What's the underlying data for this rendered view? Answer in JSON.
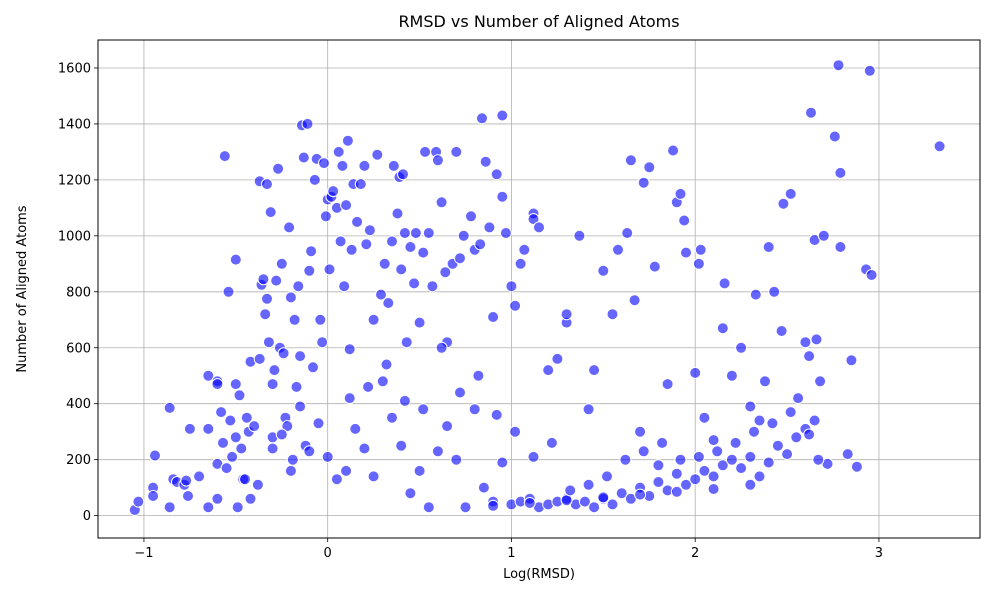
{
  "chart_data": {
    "type": "scatter",
    "title": "RMSD vs Number of Aligned Atoms",
    "xlabel": "Log(RMSD)",
    "ylabel": "Number of Aligned Atoms",
    "xlim": [
      -1.25,
      3.55
    ],
    "ylim": [
      -80,
      1700
    ],
    "xticks": [
      -1,
      0,
      1,
      2,
      3
    ],
    "yticks": [
      0,
      200,
      400,
      600,
      800,
      1000,
      1200,
      1400,
      1600
    ],
    "grid": true,
    "marker_color": "#0000ff",
    "marker_edge": "#ffffff",
    "note_points": "sampled",
    "points": [
      [
        -1.05,
        20
      ],
      [
        -1.03,
        50
      ],
      [
        -0.95,
        100
      ],
      [
        -0.95,
        70
      ],
      [
        -0.94,
        215
      ],
      [
        -0.86,
        30
      ],
      [
        -0.86,
        385
      ],
      [
        -0.84,
        130
      ],
      [
        -0.82,
        120
      ],
      [
        -0.78,
        110
      ],
      [
        -0.77,
        125
      ],
      [
        -0.76,
        70
      ],
      [
        -0.75,
        310
      ],
      [
        -0.7,
        140
      ],
      [
        -0.65,
        500
      ],
      [
        -0.65,
        310
      ],
      [
        -0.65,
        30
      ],
      [
        -0.6,
        480
      ],
      [
        -0.6,
        470
      ],
      [
        -0.6,
        185
      ],
      [
        -0.6,
        60
      ],
      [
        -0.58,
        370
      ],
      [
        -0.57,
        260
      ],
      [
        -0.56,
        1285
      ],
      [
        -0.54,
        800
      ],
      [
        -0.53,
        340
      ],
      [
        -0.52,
        210
      ],
      [
        -0.5,
        915
      ],
      [
        -0.5,
        470
      ],
      [
        -0.5,
        280
      ],
      [
        -0.49,
        30
      ],
      [
        -0.48,
        430
      ],
      [
        -0.47,
        240
      ],
      [
        -0.46,
        130
      ],
      [
        -0.44,
        350
      ],
      [
        -0.43,
        300
      ],
      [
        -0.42,
        550
      ],
      [
        -0.42,
        60
      ],
      [
        -0.4,
        320
      ],
      [
        -0.38,
        110
      ],
      [
        -0.37,
        560
      ],
      [
        -0.37,
        1195
      ],
      [
        -0.36,
        825
      ],
      [
        -0.35,
        845
      ],
      [
        -0.34,
        720
      ],
      [
        -0.33,
        1185
      ],
      [
        -0.33,
        775
      ],
      [
        -0.32,
        620
      ],
      [
        -0.31,
        1085
      ],
      [
        -0.3,
        470
      ],
      [
        -0.3,
        280
      ],
      [
        -0.29,
        520
      ],
      [
        -0.28,
        840
      ],
      [
        -0.27,
        1240
      ],
      [
        -0.26,
        600
      ],
      [
        -0.25,
        900
      ],
      [
        -0.24,
        580
      ],
      [
        -0.23,
        350
      ],
      [
        -0.22,
        320
      ],
      [
        -0.21,
        1030
      ],
      [
        -0.2,
        780
      ],
      [
        -0.19,
        200
      ],
      [
        -0.18,
        700
      ],
      [
        -0.17,
        460
      ],
      [
        -0.16,
        820
      ],
      [
        -0.15,
        570
      ],
      [
        -0.14,
        1395
      ],
      [
        -0.13,
        1280
      ],
      [
        -0.12,
        250
      ],
      [
        -0.11,
        1400
      ],
      [
        -0.1,
        875
      ],
      [
        -0.09,
        945
      ],
      [
        -0.08,
        530
      ],
      [
        -0.07,
        1200
      ],
      [
        -0.06,
        1275
      ],
      [
        -0.05,
        330
      ],
      [
        -0.04,
        700
      ],
      [
        -0.03,
        620
      ],
      [
        -0.02,
        1260
      ],
      [
        -0.01,
        1070
      ],
      [
        0.0,
        1130
      ],
      [
        0.01,
        880
      ],
      [
        0.02,
        1140
      ],
      [
        0.03,
        1160
      ],
      [
        0.05,
        1100
      ],
      [
        0.06,
        1300
      ],
      [
        0.07,
        980
      ],
      [
        0.08,
        1250
      ],
      [
        0.09,
        820
      ],
      [
        0.1,
        1110
      ],
      [
        0.11,
        1340
      ],
      [
        0.12,
        595
      ],
      [
        0.13,
        950
      ],
      [
        0.14,
        1185
      ],
      [
        0.16,
        1050
      ],
      [
        0.18,
        1185
      ],
      [
        0.2,
        1250
      ],
      [
        0.21,
        970
      ],
      [
        0.23,
        1020
      ],
      [
        0.25,
        700
      ],
      [
        0.27,
        1290
      ],
      [
        0.29,
        790
      ],
      [
        0.31,
        900
      ],
      [
        0.33,
        760
      ],
      [
        0.35,
        980
      ],
      [
        0.36,
        1250
      ],
      [
        0.38,
        1080
      ],
      [
        0.39,
        1210
      ],
      [
        0.4,
        880
      ],
      [
        0.41,
        1220
      ],
      [
        0.42,
        1010
      ],
      [
        0.43,
        620
      ],
      [
        0.45,
        960
      ],
      [
        0.47,
        830
      ],
      [
        0.48,
        1010
      ],
      [
        0.5,
        690
      ],
      [
        0.52,
        940
      ],
      [
        0.53,
        1300
      ],
      [
        0.55,
        1010
      ],
      [
        0.57,
        820
      ],
      [
        0.59,
        1300
      ],
      [
        0.6,
        1270
      ],
      [
        0.62,
        1120
      ],
      [
        0.64,
        870
      ],
      [
        0.65,
        620
      ],
      [
        0.68,
        900
      ],
      [
        0.7,
        1300
      ],
      [
        0.72,
        920
      ],
      [
        0.74,
        1000
      ],
      [
        0.78,
        1070
      ],
      [
        0.8,
        950
      ],
      [
        0.83,
        970
      ],
      [
        0.84,
        1420
      ],
      [
        0.86,
        1265
      ],
      [
        0.88,
        1030
      ],
      [
        0.9,
        710
      ],
      [
        0.92,
        1220
      ],
      [
        0.95,
        1430
      ],
      [
        0.95,
        1140
      ],
      [
        0.97,
        1010
      ],
      [
        1.0,
        820
      ],
      [
        1.02,
        750
      ],
      [
        1.05,
        900
      ],
      [
        1.07,
        950
      ],
      [
        1.12,
        1080
      ],
      [
        1.12,
        1060
      ],
      [
        1.15,
        1030
      ],
      [
        1.2,
        520
      ],
      [
        1.25,
        560
      ],
      [
        1.3,
        690
      ],
      [
        1.3,
        720
      ],
      [
        1.37,
        1000
      ],
      [
        1.42,
        380
      ],
      [
        1.45,
        520
      ],
      [
        1.5,
        875
      ],
      [
        1.55,
        720
      ],
      [
        1.58,
        950
      ],
      [
        1.63,
        1010
      ],
      [
        1.65,
        1270
      ],
      [
        1.67,
        770
      ],
      [
        1.7,
        300
      ],
      [
        1.72,
        1190
      ],
      [
        1.75,
        1245
      ],
      [
        1.78,
        890
      ],
      [
        1.8,
        180
      ],
      [
        1.85,
        470
      ],
      [
        1.88,
        1305
      ],
      [
        1.9,
        1120
      ],
      [
        1.92,
        1150
      ],
      [
        1.94,
        1055
      ],
      [
        1.95,
        940
      ],
      [
        2.0,
        510
      ],
      [
        2.02,
        900
      ],
      [
        2.03,
        950
      ],
      [
        2.05,
        350
      ],
      [
        2.1,
        270
      ],
      [
        2.15,
        670
      ],
      [
        2.16,
        830
      ],
      [
        2.2,
        500
      ],
      [
        2.25,
        600
      ],
      [
        2.3,
        390
      ],
      [
        2.33,
        790
      ],
      [
        2.35,
        340
      ],
      [
        2.38,
        480
      ],
      [
        2.4,
        960
      ],
      [
        2.43,
        800
      ],
      [
        2.47,
        660
      ],
      [
        2.48,
        1115
      ],
      [
        2.52,
        1150
      ],
      [
        2.56,
        420
      ],
      [
        2.6,
        620
      ],
      [
        2.62,
        570
      ],
      [
        2.63,
        1440
      ],
      [
        2.65,
        985
      ],
      [
        2.66,
        630
      ],
      [
        2.68,
        480
      ],
      [
        2.7,
        1000
      ],
      [
        2.76,
        1355
      ],
      [
        2.78,
        1610
      ],
      [
        2.79,
        1225
      ],
      [
        2.79,
        960
      ],
      [
        2.85,
        555
      ],
      [
        2.88,
        175
      ],
      [
        2.93,
        880
      ],
      [
        2.95,
        1590
      ],
      [
        2.96,
        860
      ],
      [
        3.33,
        1320
      ],
      [
        2.83,
        220
      ],
      [
        2.72,
        185
      ],
      [
        2.67,
        200
      ],
      [
        -0.3,
        240
      ],
      [
        -0.2,
        160
      ],
      [
        -0.15,
        390
      ],
      [
        -0.1,
        230
      ],
      [
        0.0,
        210
      ],
      [
        0.05,
        130
      ],
      [
        0.1,
        160
      ],
      [
        0.15,
        310
      ],
      [
        0.2,
        240
      ],
      [
        0.25,
        140
      ],
      [
        0.3,
        480
      ],
      [
        0.35,
        350
      ],
      [
        0.4,
        250
      ],
      [
        0.45,
        80
      ],
      [
        0.5,
        160
      ],
      [
        0.55,
        30
      ],
      [
        0.6,
        230
      ],
      [
        0.65,
        320
      ],
      [
        0.7,
        200
      ],
      [
        0.75,
        30
      ],
      [
        0.8,
        380
      ],
      [
        0.85,
        100
      ],
      [
        0.9,
        50
      ],
      [
        0.95,
        190
      ],
      [
        1.0,
        40
      ],
      [
        1.05,
        50
      ],
      [
        1.1,
        60
      ],
      [
        1.15,
        30
      ],
      [
        1.2,
        40
      ],
      [
        1.25,
        50
      ],
      [
        1.3,
        60
      ],
      [
        1.35,
        40
      ],
      [
        1.4,
        50
      ],
      [
        1.45,
        30
      ],
      [
        1.5,
        60
      ],
      [
        1.55,
        40
      ],
      [
        1.6,
        80
      ],
      [
        1.65,
        60
      ],
      [
        1.7,
        100
      ],
      [
        1.75,
        70
      ],
      [
        1.8,
        120
      ],
      [
        1.85,
        90
      ],
      [
        1.9,
        150
      ],
      [
        1.95,
        110
      ],
      [
        2.0,
        130
      ],
      [
        2.05,
        160
      ],
      [
        2.1,
        140
      ],
      [
        2.15,
        180
      ],
      [
        2.2,
        200
      ],
      [
        2.25,
        170
      ],
      [
        2.3,
        210
      ],
      [
        2.35,
        140
      ],
      [
        2.4,
        190
      ],
      [
        2.45,
        250
      ],
      [
        2.5,
        220
      ],
      [
        2.55,
        280
      ],
      [
        2.6,
        310
      ],
      [
        2.65,
        340
      ],
      [
        2.3,
        110
      ],
      [
        2.1,
        95
      ],
      [
        1.9,
        85
      ],
      [
        1.7,
        75
      ],
      [
        1.5,
        65
      ],
      [
        1.3,
        55
      ],
      [
        1.1,
        45
      ],
      [
        0.9,
        35
      ],
      [
        -0.45,
        130
      ],
      [
        -0.55,
        170
      ],
      [
        -0.25,
        290
      ],
      [
        0.12,
        420
      ],
      [
        0.22,
        460
      ],
      [
        0.32,
        540
      ],
      [
        0.42,
        410
      ],
      [
        0.52,
        380
      ],
      [
        0.62,
        600
      ],
      [
        0.72,
        440
      ],
      [
        0.82,
        500
      ],
      [
        0.92,
        360
      ],
      [
        1.02,
        300
      ],
      [
        1.12,
        210
      ],
      [
        1.22,
        260
      ],
      [
        1.32,
        90
      ],
      [
        1.42,
        110
      ],
      [
        1.52,
        140
      ],
      [
        1.62,
        200
      ],
      [
        1.72,
        230
      ],
      [
        1.82,
        260
      ],
      [
        1.92,
        200
      ],
      [
        2.02,
        210
      ],
      [
        2.12,
        230
      ],
      [
        2.22,
        260
      ],
      [
        2.32,
        300
      ],
      [
        2.42,
        330
      ],
      [
        2.52,
        370
      ],
      [
        2.62,
        290
      ]
    ]
  }
}
